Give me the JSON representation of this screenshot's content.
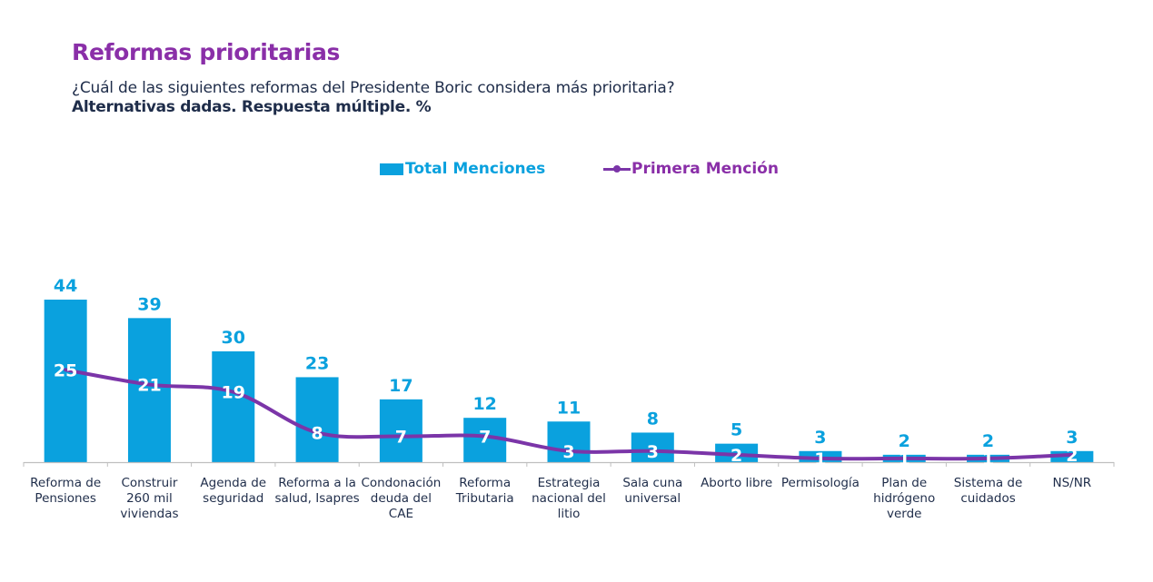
{
  "header": {
    "title": "Reformas prioritarias",
    "subtitle": "¿Cuál de las siguientes reformas del Presidente Boric considera más prioritaria?",
    "note": "Alternativas dadas. Respuesta múltiple. %"
  },
  "colors": {
    "bar": "#0aa1de",
    "line": "#7b35a8",
    "title": "#8a2fa8",
    "text": "#1f2d4a"
  },
  "chart_data": {
    "type": "bar",
    "title": "Reformas prioritarias",
    "subtitle": "¿Cuál de las siguientes reformas del Presidente Boric considera más prioritaria?",
    "xlabel": "",
    "ylabel": "%",
    "ylim": [
      0,
      44
    ],
    "grid": false,
    "legend_position": "top-center",
    "categories": [
      [
        "Reforma de",
        "Pensiones"
      ],
      [
        "Construir",
        "260 mil",
        "viviendas"
      ],
      [
        "Agenda de",
        "seguridad"
      ],
      [
        "Reforma a la",
        "salud, Isapres"
      ],
      [
        "Condonación",
        "deuda del",
        "CAE"
      ],
      [
        "Reforma",
        "Tributaria"
      ],
      [
        "Estrategia",
        "nacional del",
        "litio"
      ],
      [
        "Sala cuna",
        "universal"
      ],
      [
        "Aborto libre"
      ],
      [
        "Permisología"
      ],
      [
        "Plan de",
        "hidrógeno",
        "verde"
      ],
      [
        "Sistema de",
        "cuidados"
      ],
      [
        "NS/NR"
      ]
    ],
    "series": [
      {
        "name": "Total Menciones",
        "type": "bar",
        "values": [
          44,
          39,
          30,
          23,
          17,
          12,
          11,
          8,
          5,
          3,
          2,
          2,
          3
        ]
      },
      {
        "name": "Primera Mención",
        "type": "line",
        "values": [
          25,
          21,
          19,
          8,
          7,
          7,
          3,
          3,
          2,
          1,
          1,
          1,
          2
        ]
      }
    ]
  },
  "legend": {
    "bar_label": "Total Menciones",
    "line_label": "Primera Mención",
    "bar_icon": "bar-swatch-icon",
    "line_icon": "line-marker-swatch-icon"
  }
}
